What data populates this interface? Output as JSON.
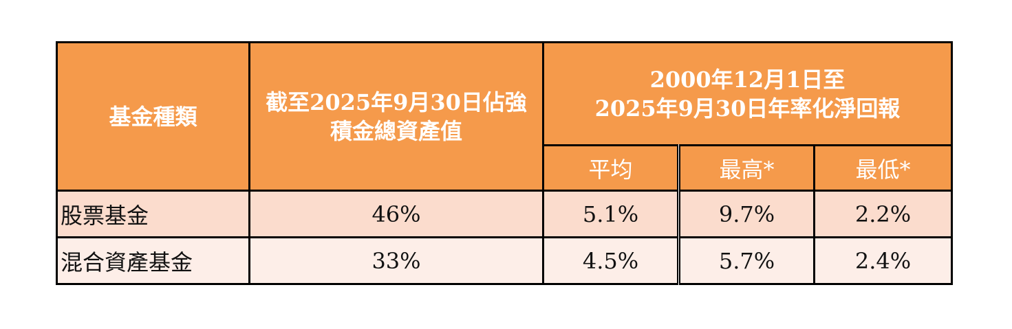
{
  "table": {
    "header": {
      "fund_type": "基金種類",
      "assets_line1": "截至2025年9月30日佔強",
      "assets_line2": "積金總資產值",
      "return_line1": "2000年12月1日至",
      "return_line2": "2025年9月30日年率化淨回報",
      "sub_average": "平均",
      "sub_highest": "最高*",
      "sub_lowest": "最低*"
    },
    "rows": [
      {
        "fund_type": "股票基金",
        "assets_share": "46%",
        "average": "5.1%",
        "highest": "9.7%",
        "lowest": "2.2%"
      },
      {
        "fund_type": "混合資產基金",
        "assets_share": "33%",
        "average": "4.5%",
        "highest": "5.7%",
        "lowest": "2.4%"
      }
    ]
  },
  "colors": {
    "header_bg": "#f59a4b",
    "row1_bg": "#fbdccd",
    "row2_bg": "#fdeee8",
    "border": "#000000",
    "header_text": "#ffffff"
  }
}
